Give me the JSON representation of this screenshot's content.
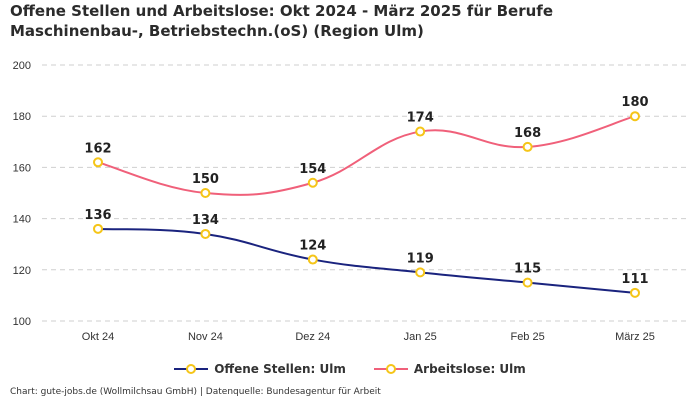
{
  "chart_data": {
    "type": "line",
    "title": "Offene Stellen und Arbeitslose: Okt 2024 - März 2025 für Berufe Maschinenbau-, Betriebstechn.(oS) (Region Ulm)",
    "categories": [
      "Okt 24",
      "Nov 24",
      "Dez 24",
      "Jan 25",
      "Feb 25",
      "März 25"
    ],
    "series": [
      {
        "name": "Offene Stellen: Ulm",
        "values": [
          136,
          134,
          124,
          119,
          115,
          111
        ],
        "color": "#1a237e"
      },
      {
        "name": "Arbeitslose: Ulm",
        "values": [
          162,
          150,
          154,
          174,
          168,
          180
        ],
        "color": "#f0607a"
      }
    ],
    "marker_color": "#f5c518",
    "ylim": [
      100,
      200
    ],
    "yticks": [
      100,
      120,
      140,
      160,
      180,
      200
    ],
    "grid": true,
    "legend_position": "bottom",
    "xlabel": "",
    "ylabel": ""
  },
  "footer": "Chart: gute-jobs.de (Wollmilchsau GmbH) | Datenquelle: Bundesagentur für Arbeit"
}
